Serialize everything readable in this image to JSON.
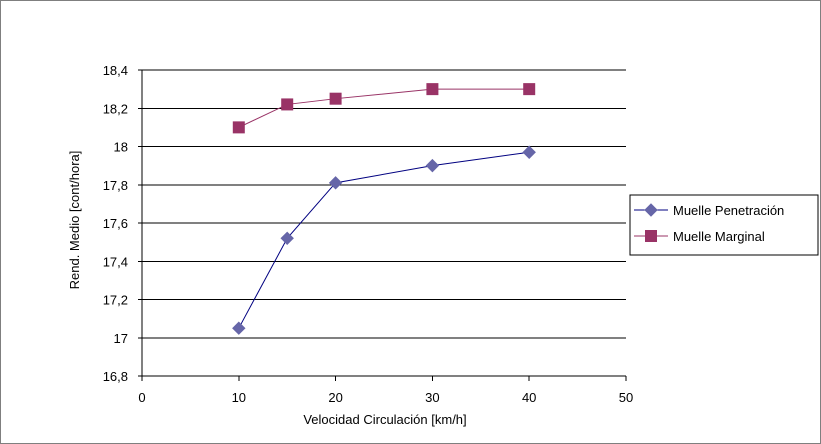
{
  "chart_data": {
    "type": "line",
    "title": "",
    "xlabel": "Velocidad Circulación [km/h]",
    "ylabel": "Rend. Medio [cont/hora]",
    "xlim": [
      0,
      50
    ],
    "ylim": [
      16.8,
      18.4
    ],
    "x_ticks": [
      0,
      10,
      20,
      30,
      40,
      50
    ],
    "x_tick_labels": [
      "0",
      "10",
      "20",
      "30",
      "40",
      "50"
    ],
    "y_ticks": [
      16.8,
      17.0,
      17.2,
      17.4,
      17.6,
      17.8,
      18.0,
      18.2,
      18.4
    ],
    "y_tick_labels": [
      "16,8",
      "17",
      "17,2",
      "17,4",
      "17,6",
      "17,8",
      "18",
      "18,2",
      "18,4"
    ],
    "grid": "horizontal",
    "legend_position": "right",
    "x": [
      10,
      15,
      20,
      30,
      40
    ],
    "series": [
      {
        "name": "Muelle Penetración",
        "values": [
          17.05,
          17.52,
          17.81,
          17.9,
          17.97
        ],
        "color": "#000080",
        "marker_color": "#6666a8",
        "marker": "diamond"
      },
      {
        "name": "Muelle Marginal",
        "values": [
          18.1,
          18.22,
          18.25,
          18.3,
          18.3
        ],
        "color": "#993366",
        "marker_color": "#993366",
        "marker": "square"
      }
    ]
  }
}
